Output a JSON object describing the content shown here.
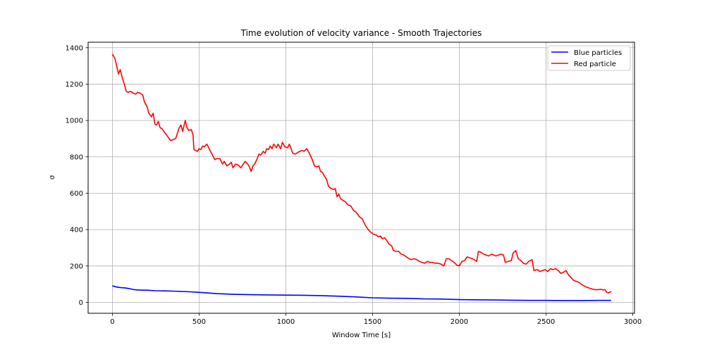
{
  "chart_data": {
    "type": "line",
    "title": "Time evolution of velocity variance - Smooth Trajectories",
    "xlabel": "Window Time [s]",
    "ylabel": "σ",
    "xlim": [
      -140,
      3010
    ],
    "ylim": [
      -60,
      1430
    ],
    "xticks": [
      0,
      500,
      1000,
      1500,
      2000,
      2500,
      3000
    ],
    "yticks": [
      0,
      200,
      400,
      600,
      800,
      1000,
      1200,
      1400
    ],
    "grid": true,
    "legend_position": "top-right",
    "series": [
      {
        "name": "Blue particles",
        "color": "#0000ff",
        "points": [
          [
            0,
            91
          ],
          [
            25,
            84
          ],
          [
            50,
            81
          ],
          [
            75,
            79
          ],
          [
            100,
            75
          ],
          [
            125,
            70
          ],
          [
            150,
            68
          ],
          [
            200,
            67
          ],
          [
            250,
            64
          ],
          [
            300,
            63
          ],
          [
            350,
            62
          ],
          [
            400,
            60
          ],
          [
            450,
            58
          ],
          [
            500,
            55
          ],
          [
            550,
            52
          ],
          [
            600,
            48
          ],
          [
            650,
            46
          ],
          [
            700,
            44
          ],
          [
            800,
            42
          ],
          [
            900,
            41
          ],
          [
            1000,
            40
          ],
          [
            1100,
            39
          ],
          [
            1200,
            37
          ],
          [
            1300,
            34
          ],
          [
            1400,
            30
          ],
          [
            1500,
            25
          ],
          [
            1600,
            23
          ],
          [
            1700,
            22
          ],
          [
            1800,
            19
          ],
          [
            1900,
            18
          ],
          [
            2000,
            15
          ],
          [
            2100,
            14
          ],
          [
            2200,
            13
          ],
          [
            2300,
            12
          ],
          [
            2400,
            11
          ],
          [
            2500,
            11
          ],
          [
            2600,
            10
          ],
          [
            2700,
            10
          ],
          [
            2800,
            11
          ],
          [
            2875,
            11
          ]
        ]
      },
      {
        "name": "Red particle",
        "color": "#ff0000",
        "points": [
          [
            0,
            1365
          ],
          [
            15,
            1340
          ],
          [
            35,
            1255
          ],
          [
            45,
            1280
          ],
          [
            55,
            1240
          ],
          [
            70,
            1195
          ],
          [
            80,
            1160
          ],
          [
            90,
            1155
          ],
          [
            105,
            1160
          ],
          [
            120,
            1150
          ],
          [
            135,
            1145
          ],
          [
            145,
            1155
          ],
          [
            160,
            1150
          ],
          [
            175,
            1140
          ],
          [
            185,
            1100
          ],
          [
            200,
            1075
          ],
          [
            210,
            1040
          ],
          [
            225,
            1020
          ],
          [
            235,
            1040
          ],
          [
            245,
            980
          ],
          [
            255,
            975
          ],
          [
            265,
            995
          ],
          [
            275,
            960
          ],
          [
            285,
            955
          ],
          [
            300,
            935
          ],
          [
            320,
            910
          ],
          [
            335,
            890
          ],
          [
            350,
            895
          ],
          [
            365,
            900
          ],
          [
            385,
            960
          ],
          [
            395,
            975
          ],
          [
            405,
            940
          ],
          [
            420,
            1000
          ],
          [
            430,
            960
          ],
          [
            440,
            945
          ],
          [
            455,
            950
          ],
          [
            465,
            920
          ],
          [
            470,
            840
          ],
          [
            480,
            835
          ],
          [
            490,
            830
          ],
          [
            500,
            845
          ],
          [
            510,
            840
          ],
          [
            520,
            860
          ],
          [
            530,
            855
          ],
          [
            545,
            870
          ],
          [
            555,
            850
          ],
          [
            565,
            830
          ],
          [
            580,
            805
          ],
          [
            590,
            785
          ],
          [
            600,
            790
          ],
          [
            620,
            790
          ],
          [
            635,
            760
          ],
          [
            645,
            775
          ],
          [
            660,
            750
          ],
          [
            675,
            760
          ],
          [
            685,
            770
          ],
          [
            695,
            740
          ],
          [
            710,
            760
          ],
          [
            725,
            755
          ],
          [
            740,
            740
          ],
          [
            755,
            760
          ],
          [
            765,
            775
          ],
          [
            780,
            760
          ],
          [
            790,
            745
          ],
          [
            800,
            720
          ],
          [
            810,
            750
          ],
          [
            820,
            760
          ],
          [
            835,
            790
          ],
          [
            845,
            815
          ],
          [
            855,
            810
          ],
          [
            870,
            830
          ],
          [
            880,
            820
          ],
          [
            890,
            845
          ],
          [
            900,
            840
          ],
          [
            910,
            860
          ],
          [
            920,
            845
          ],
          [
            930,
            870
          ],
          [
            945,
            850
          ],
          [
            955,
            870
          ],
          [
            970,
            845
          ],
          [
            980,
            880
          ],
          [
            995,
            855
          ],
          [
            1010,
            850
          ],
          [
            1020,
            870
          ],
          [
            1030,
            845
          ],
          [
            1040,
            820
          ],
          [
            1055,
            815
          ],
          [
            1070,
            825
          ],
          [
            1080,
            830
          ],
          [
            1095,
            835
          ],
          [
            1105,
            830
          ],
          [
            1120,
            845
          ],
          [
            1135,
            820
          ],
          [
            1150,
            790
          ],
          [
            1165,
            750
          ],
          [
            1180,
            745
          ],
          [
            1190,
            750
          ],
          [
            1200,
            720
          ],
          [
            1210,
            715
          ],
          [
            1225,
            690
          ],
          [
            1235,
            675
          ],
          [
            1245,
            640
          ],
          [
            1255,
            630
          ],
          [
            1265,
            625
          ],
          [
            1275,
            620
          ],
          [
            1285,
            625
          ],
          [
            1295,
            580
          ],
          [
            1305,
            595
          ],
          [
            1315,
            570
          ],
          [
            1330,
            560
          ],
          [
            1340,
            555
          ],
          [
            1350,
            545
          ],
          [
            1360,
            535
          ],
          [
            1375,
            530
          ],
          [
            1390,
            505
          ],
          [
            1400,
            500
          ],
          [
            1410,
            490
          ],
          [
            1425,
            470
          ],
          [
            1440,
            460
          ],
          [
            1450,
            440
          ],
          [
            1460,
            420
          ],
          [
            1475,
            400
          ],
          [
            1490,
            385
          ],
          [
            1505,
            375
          ],
          [
            1520,
            370
          ],
          [
            1535,
            360
          ],
          [
            1545,
            365
          ],
          [
            1555,
            350
          ],
          [
            1570,
            355
          ],
          [
            1585,
            335
          ],
          [
            1595,
            320
          ],
          [
            1610,
            310
          ],
          [
            1620,
            285
          ],
          [
            1635,
            280
          ],
          [
            1650,
            280
          ],
          [
            1665,
            265
          ],
          [
            1680,
            260
          ],
          [
            1695,
            250
          ],
          [
            1710,
            240
          ],
          [
            1725,
            235
          ],
          [
            1740,
            240
          ],
          [
            1755,
            235
          ],
          [
            1770,
            225
          ],
          [
            1785,
            220
          ],
          [
            1800,
            215
          ],
          [
            1815,
            225
          ],
          [
            1830,
            220
          ],
          [
            1845,
            220
          ],
          [
            1860,
            215
          ],
          [
            1875,
            215
          ],
          [
            1895,
            210
          ],
          [
            1910,
            200
          ],
          [
            1925,
            240
          ],
          [
            1940,
            240
          ],
          [
            1955,
            230
          ],
          [
            1970,
            220
          ],
          [
            1985,
            205
          ],
          [
            2000,
            200
          ],
          [
            2015,
            225
          ],
          [
            2030,
            230
          ],
          [
            2045,
            250
          ],
          [
            2060,
            245
          ],
          [
            2075,
            240
          ],
          [
            2085,
            235
          ],
          [
            2100,
            225
          ],
          [
            2110,
            280
          ],
          [
            2125,
            275
          ],
          [
            2140,
            265
          ],
          [
            2155,
            260
          ],
          [
            2170,
            255
          ],
          [
            2185,
            265
          ],
          [
            2200,
            260
          ],
          [
            2210,
            255
          ],
          [
            2225,
            260
          ],
          [
            2240,
            265
          ],
          [
            2255,
            260
          ],
          [
            2265,
            220
          ],
          [
            2280,
            225
          ],
          [
            2300,
            230
          ],
          [
            2310,
            270
          ],
          [
            2325,
            285
          ],
          [
            2340,
            240
          ],
          [
            2355,
            230
          ],
          [
            2370,
            215
          ],
          [
            2385,
            210
          ],
          [
            2400,
            225
          ],
          [
            2420,
            235
          ],
          [
            2430,
            175
          ],
          [
            2450,
            180
          ],
          [
            2465,
            170
          ],
          [
            2480,
            175
          ],
          [
            2495,
            180
          ],
          [
            2510,
            170
          ],
          [
            2525,
            185
          ],
          [
            2540,
            180
          ],
          [
            2555,
            185
          ],
          [
            2570,
            175
          ],
          [
            2585,
            160
          ],
          [
            2600,
            165
          ],
          [
            2615,
            175
          ],
          [
            2630,
            150
          ],
          [
            2645,
            135
          ],
          [
            2660,
            120
          ],
          [
            2675,
            115
          ],
          [
            2690,
            110
          ],
          [
            2710,
            95
          ],
          [
            2730,
            85
          ],
          [
            2745,
            80
          ],
          [
            2760,
            75
          ],
          [
            2780,
            70
          ],
          [
            2800,
            70
          ],
          [
            2815,
            72
          ],
          [
            2830,
            68
          ],
          [
            2840,
            70
          ],
          [
            2850,
            55
          ],
          [
            2860,
            52
          ],
          [
            2875,
            60
          ]
        ]
      }
    ]
  }
}
